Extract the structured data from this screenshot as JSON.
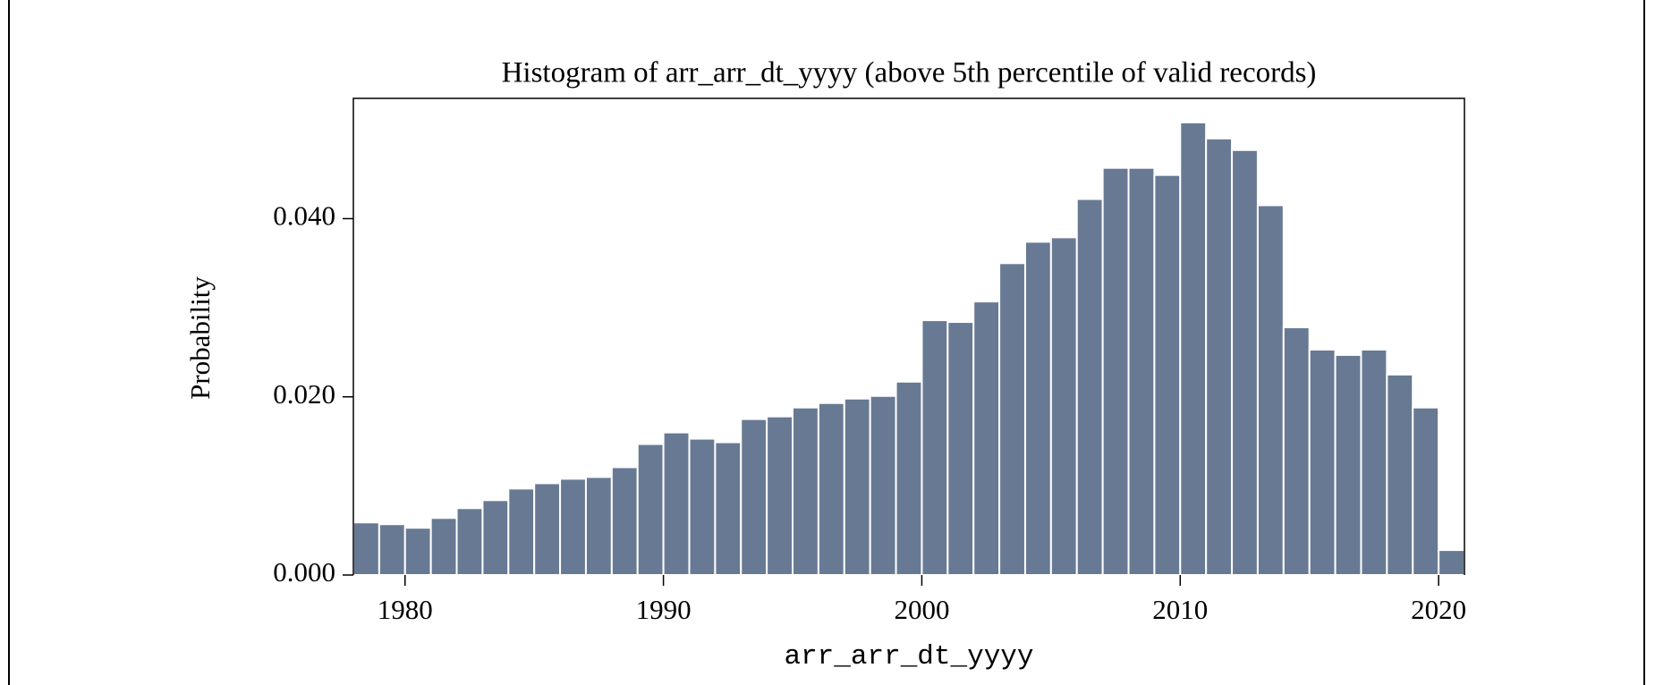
{
  "chart_data": {
    "type": "histogram",
    "title": "Histogram of arr_arr_dt_yyyy (above 5th percentile of valid records)",
    "xlabel": "arr_arr_dt_yyyy",
    "ylabel": "Probability",
    "bins": [
      1978,
      1979,
      1980,
      1981,
      1982,
      1983,
      1984,
      1985,
      1986,
      1987,
      1988,
      1989,
      1990,
      1991,
      1992,
      1993,
      1994,
      1995,
      1996,
      1997,
      1998,
      1999,
      2000,
      2001,
      2002,
      2003,
      2004,
      2005,
      2006,
      2007,
      2008,
      2009,
      2010,
      2011,
      2012,
      2013,
      2014,
      2015,
      2016,
      2017,
      2018,
      2019,
      2020,
      2021
    ],
    "values": [
      0.0059,
      0.0057,
      0.0053,
      0.0064,
      0.0075,
      0.0084,
      0.0097,
      0.0103,
      0.0108,
      0.011,
      0.0121,
      0.0147,
      0.016,
      0.0153,
      0.0149,
      0.0175,
      0.0178,
      0.0188,
      0.0193,
      0.0198,
      0.0201,
      0.0217,
      0.0286,
      0.0284,
      0.0307,
      0.035,
      0.0374,
      0.0379,
      0.0422,
      0.0457,
      0.0457,
      0.0449,
      0.0508,
      0.049,
      0.0477,
      0.0415,
      0.0278,
      0.0253,
      0.0247,
      0.0253,
      0.0225,
      0.0188,
      0.0028
    ],
    "color": "#687a93",
    "xlim": [
      1978,
      2021
    ],
    "xticks": [
      1980,
      1990,
      2000,
      2010,
      2020
    ],
    "ylim": [
      0,
      0.0535
    ],
    "yticks": [
      {
        "value": 0,
        "label": "0.000"
      },
      {
        "value": 0.02,
        "label": "0.020"
      },
      {
        "value": 0.04,
        "label": "0.040"
      }
    ]
  }
}
